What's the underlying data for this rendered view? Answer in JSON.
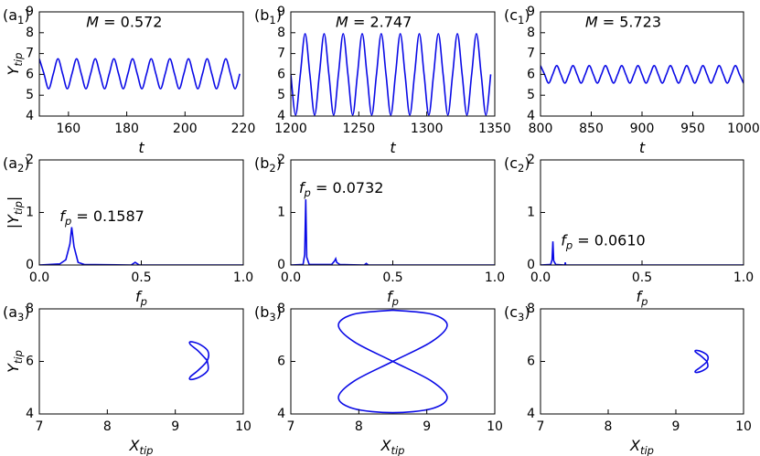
{
  "chart_data": [
    {
      "type": "line",
      "panel": [
        {
          "t": "(a"
        },
        {
          "t": "1",
          "sub": true
        },
        {
          "t": ")"
        }
      ],
      "annotation": [
        {
          "t": "M",
          "i": true
        },
        {
          "t": " = 0.572"
        }
      ],
      "xlabel": [
        {
          "t": "t",
          "i": true
        }
      ],
      "ylabel": [
        {
          "t": "Y",
          "i": true
        },
        {
          "t": "tip",
          "sub": true,
          "i": true
        }
      ],
      "xlim": [
        150,
        220
      ],
      "xticks": [
        160,
        180,
        200,
        220
      ],
      "ylim": [
        4,
        9
      ],
      "yticks": [
        4,
        5,
        6,
        7,
        8,
        9
      ],
      "smooth": true,
      "series": [
        {
          "color": "#0a0ae6",
          "x": [
            150,
            151.6,
            153.2,
            154.8,
            156.4,
            158,
            159.6,
            161.2,
            162.8,
            164.4,
            166,
            167.6,
            169.2,
            170.8,
            172.4,
            174,
            175.6,
            177.2,
            178.8,
            180.4,
            182,
            183.6,
            185.2,
            186.8,
            188.4,
            190,
            191.6,
            193.2,
            194.8,
            196.4,
            198,
            199.6,
            201.2,
            202.8,
            204.4,
            206,
            207.6,
            209.2,
            210.8,
            212.4,
            214,
            215.6,
            217.2,
            218.8
          ],
          "values": [
            6.75,
            6.03,
            5.31,
            6.03,
            6.75,
            6.03,
            5.31,
            6.03,
            6.75,
            6.03,
            5.31,
            6.03,
            6.75,
            6.03,
            5.31,
            6.03,
            6.75,
            6.03,
            5.31,
            6.03,
            6.75,
            6.03,
            5.31,
            6.03,
            6.75,
            6.03,
            5.31,
            6.03,
            6.75,
            6.03,
            5.31,
            6.03,
            6.75,
            6.03,
            5.31,
            6.03,
            6.75,
            6.03,
            5.31,
            6.03,
            6.75,
            6.03,
            5.31,
            6.03
          ]
        }
      ]
    },
    {
      "type": "line",
      "panel": [
        {
          "t": "(b"
        },
        {
          "t": "1",
          "sub": true
        },
        {
          "t": ")"
        }
      ],
      "annotation": [
        {
          "t": "M",
          "i": true
        },
        {
          "t": " = 2.747"
        }
      ],
      "xlabel": [
        {
          "t": "t",
          "i": true
        }
      ],
      "xlim": [
        1200,
        1350
      ],
      "xticks": [
        1200,
        1250,
        1300,
        1350
      ],
      "ylim": [
        4,
        9
      ],
      "yticks": [
        4,
        5,
        6,
        7,
        8,
        9
      ],
      "smooth": true,
      "series": [
        {
          "color": "#0a0ae6",
          "x": [
            1200,
            1203.5,
            1207,
            1210.5,
            1214,
            1217.5,
            1221,
            1224.5,
            1228,
            1231.5,
            1235,
            1238.5,
            1242,
            1245.5,
            1249,
            1252.5,
            1256,
            1259.5,
            1263,
            1266.5,
            1270,
            1273.5,
            1277,
            1280.5,
            1284,
            1287.5,
            1291,
            1294.5,
            1298,
            1301.5,
            1305,
            1308.5,
            1312,
            1315.5,
            1319,
            1322.5,
            1326,
            1329.5,
            1333,
            1336.5,
            1340,
            1343.5,
            1347
          ],
          "values": [
            6,
            4.05,
            6,
            7.95,
            6,
            4.05,
            6,
            7.95,
            6,
            4.05,
            6,
            7.95,
            6,
            4.05,
            6,
            7.95,
            6,
            4.05,
            6,
            7.95,
            6,
            4.05,
            6,
            7.95,
            6,
            4.05,
            6,
            7.95,
            6,
            4.05,
            6,
            7.95,
            6,
            4.05,
            6,
            7.95,
            6,
            4.05,
            6,
            7.95,
            6,
            4.05,
            6
          ]
        }
      ]
    },
    {
      "type": "line",
      "panel": [
        {
          "t": "(c"
        },
        {
          "t": "1",
          "sub": true
        },
        {
          "t": ")"
        }
      ],
      "annotation": [
        {
          "t": "M",
          "i": true
        },
        {
          "t": " = 5.723"
        }
      ],
      "xlabel": [
        {
          "t": "t",
          "i": true
        }
      ],
      "xlim": [
        800,
        1000
      ],
      "xticks": [
        800,
        850,
        900,
        950,
        1000
      ],
      "ylim": [
        4,
        9
      ],
      "yticks": [
        4,
        5,
        6,
        7,
        8,
        9
      ],
      "smooth": true,
      "series": [
        {
          "color": "#0a0ae6",
          "x": [
            800,
            804,
            808,
            812,
            816,
            820,
            824,
            828,
            832,
            836,
            840,
            844,
            848,
            852,
            856,
            860,
            864,
            868,
            872,
            876,
            880,
            884,
            888,
            892,
            896,
            900,
            904,
            908,
            912,
            916,
            920,
            924,
            928,
            932,
            936,
            940,
            944,
            948,
            952,
            956,
            960,
            964,
            968,
            972,
            976,
            980,
            984,
            988,
            992,
            996,
            1000
          ],
          "values": [
            6.42,
            6.0,
            5.58,
            6.0,
            6.42,
            6.0,
            5.58,
            6.0,
            6.42,
            6.0,
            5.58,
            6.0,
            6.42,
            6.0,
            5.58,
            6.0,
            6.42,
            6.0,
            5.58,
            6.0,
            6.42,
            6.0,
            5.58,
            6.0,
            6.42,
            6.0,
            5.58,
            6.0,
            6.42,
            6.0,
            5.58,
            6.0,
            6.42,
            6.0,
            5.58,
            6.0,
            6.42,
            6.0,
            5.58,
            6.0,
            6.42,
            6.0,
            5.58,
            6.0,
            6.42,
            6.0,
            5.58,
            6.0,
            6.42,
            6.0,
            5.58
          ]
        }
      ]
    },
    {
      "type": "line",
      "panel": [
        {
          "t": "(a"
        },
        {
          "t": "2",
          "sub": true
        },
        {
          "t": ")"
        }
      ],
      "annotation": [
        {
          "t": "f",
          "i": true
        },
        {
          "t": "p",
          "sub": true,
          "i": true
        },
        {
          "t": " = 0.1587"
        }
      ],
      "xlabel": [
        {
          "t": "f",
          "i": true
        },
        {
          "t": "p",
          "sub": true,
          "i": true
        }
      ],
      "ylabel": [
        {
          "t": "|"
        },
        {
          "t": "Y",
          "i": true
        },
        {
          "t": "tip",
          "sub": true,
          "i": true
        },
        {
          "t": "|"
        }
      ],
      "xlim": [
        0,
        1
      ],
      "xticks": [
        {
          "value": 0,
          "label": "0.0"
        },
        0.5,
        {
          "value": 1,
          "label": "1.0"
        }
      ],
      "ylim": [
        0,
        2
      ],
      "yticks": [
        0,
        1,
        2
      ],
      "smooth": false,
      "series": [
        {
          "color": "#0a0ae6",
          "x": [
            0,
            0.1,
            0.13,
            0.15,
            0.1587,
            0.17,
            0.19,
            0.22,
            0.45,
            0.47,
            0.49,
            1.0
          ],
          "values": [
            0,
            0.02,
            0.1,
            0.4,
            0.72,
            0.35,
            0.05,
            0.01,
            0,
            0.05,
            0,
            0
          ]
        }
      ]
    },
    {
      "type": "line",
      "panel": [
        {
          "t": "(b"
        },
        {
          "t": "2",
          "sub": true
        },
        {
          "t": ")"
        }
      ],
      "annotation": [
        {
          "t": "f",
          "i": true
        },
        {
          "t": "p",
          "sub": true,
          "i": true
        },
        {
          "t": " = 0.0732"
        }
      ],
      "xlabel": [
        {
          "t": "f",
          "i": true
        },
        {
          "t": "p",
          "sub": true,
          "i": true
        }
      ],
      "xlim": [
        0,
        1
      ],
      "xticks": [
        {
          "value": 0,
          "label": "0.0"
        },
        0.5,
        {
          "value": 1,
          "label": "1.0"
        }
      ],
      "ylim": [
        0,
        2
      ],
      "yticks": [
        0,
        1,
        2
      ],
      "smooth": false,
      "series": [
        {
          "color": "#0a0ae6",
          "x": [
            0,
            0.06,
            0.068,
            0.0732,
            0.078,
            0.09,
            0.2,
            0.215,
            0.22,
            0.225,
            0.24,
            0.36,
            0.37,
            0.38,
            1.0
          ],
          "values": [
            0,
            0.01,
            0.2,
            1.25,
            0.15,
            0.01,
            0.01,
            0.08,
            0.12,
            0.05,
            0.01,
            0,
            0.03,
            0,
            0
          ]
        }
      ]
    },
    {
      "type": "line",
      "panel": [
        {
          "t": "(c"
        },
        {
          "t": "2",
          "sub": true
        },
        {
          "t": ")"
        }
      ],
      "annotation": [
        {
          "t": "f",
          "i": true
        },
        {
          "t": "p",
          "sub": true,
          "i": true
        },
        {
          "t": " = 0.0610"
        }
      ],
      "xlabel": [
        {
          "t": "f",
          "i": true
        },
        {
          "t": "p",
          "sub": true,
          "i": true
        }
      ],
      "xlim": [
        0,
        1
      ],
      "xticks": [
        {
          "value": 0,
          "label": "0.0"
        },
        0.5,
        {
          "value": 1,
          "label": "1.0"
        }
      ],
      "ylim": [
        0,
        2
      ],
      "yticks": [
        0,
        1,
        2
      ],
      "smooth": false,
      "series": [
        {
          "color": "#0a0ae6",
          "x": [
            0,
            0.05,
            0.057,
            0.061,
            0.065,
            0.075,
            0.12,
            0.122,
            0.124,
            1.0
          ],
          "values": [
            0,
            0.01,
            0.1,
            0.45,
            0.08,
            0.01,
            0,
            0.05,
            0,
            0
          ]
        }
      ]
    },
    {
      "type": "line",
      "panel": [
        {
          "t": "(a"
        },
        {
          "t": "3",
          "sub": true
        },
        {
          "t": ")"
        }
      ],
      "xlabel": [
        {
          "t": "X",
          "i": true
        },
        {
          "t": "tip",
          "sub": true,
          "i": true
        }
      ],
      "ylabel": [
        {
          "t": "Y",
          "i": true
        },
        {
          "t": "tip",
          "sub": true,
          "i": true
        }
      ],
      "xlim": [
        7,
        10
      ],
      "xticks": [
        7,
        8,
        9,
        10
      ],
      "ylim": [
        4,
        8
      ],
      "yticks": [
        4,
        6,
        8
      ],
      "smooth": true,
      "series": [
        {
          "color": "#0a0ae6",
          "x": [
            9.47,
            9.34,
            9.22,
            9.23,
            9.36,
            9.48,
            9.47,
            9.34,
            9.22,
            9.23,
            9.36,
            9.48,
            9.47
          ],
          "values": [
            6.03,
            6.39,
            6.65,
            6.75,
            6.65,
            6.39,
            6.03,
            5.67,
            5.41,
            5.31,
            5.41,
            5.67,
            6.03
          ]
        }
      ]
    },
    {
      "type": "line",
      "panel": [
        {
          "t": "(b"
        },
        {
          "t": "3",
          "sub": true
        },
        {
          "t": ")"
        }
      ],
      "xlabel": [
        {
          "t": "X",
          "i": true
        },
        {
          "t": "tip",
          "sub": true,
          "i": true
        }
      ],
      "xlim": [
        7,
        10
      ],
      "xticks": [
        7,
        8,
        9,
        10
      ],
      "ylim": [
        4,
        8
      ],
      "yticks": [
        4,
        6,
        8
      ],
      "smooth": true,
      "series": [
        {
          "color": "#0a0ae6",
          "x": [
            8.5,
            9.07,
            9.3,
            9.07,
            8.5,
            7.93,
            7.7,
            7.93,
            8.5,
            9.07,
            9.3,
            9.07,
            8.5,
            7.93,
            7.7,
            7.93,
            8.5
          ],
          "values": [
            7.95,
            7.8,
            7.38,
            6.75,
            6.0,
            5.25,
            4.62,
            4.2,
            4.05,
            4.2,
            4.62,
            5.25,
            6.0,
            6.75,
            7.38,
            7.8,
            7.95
          ]
        }
      ]
    },
    {
      "type": "line",
      "panel": [
        {
          "t": "(c"
        },
        {
          "t": "3",
          "sub": true
        },
        {
          "t": ")"
        }
      ],
      "xlabel": [
        {
          "t": "X",
          "i": true
        },
        {
          "t": "tip",
          "sub": true,
          "i": true
        }
      ],
      "xlim": [
        7,
        10
      ],
      "xticks": [
        7,
        8,
        9,
        10
      ],
      "ylim": [
        4,
        8
      ],
      "yticks": [
        4,
        6,
        8
      ],
      "smooth": true,
      "series": [
        {
          "color": "#0a0ae6",
          "x": [
            9.46,
            9.37,
            9.29,
            9.3,
            9.39,
            9.47,
            9.46,
            9.37,
            9.29,
            9.3,
            9.39,
            9.47,
            9.46
          ],
          "values": [
            6.0,
            6.21,
            6.36,
            6.42,
            6.36,
            6.21,
            6.0,
            5.79,
            5.64,
            5.58,
            5.64,
            5.79,
            6.0
          ]
        }
      ]
    }
  ]
}
